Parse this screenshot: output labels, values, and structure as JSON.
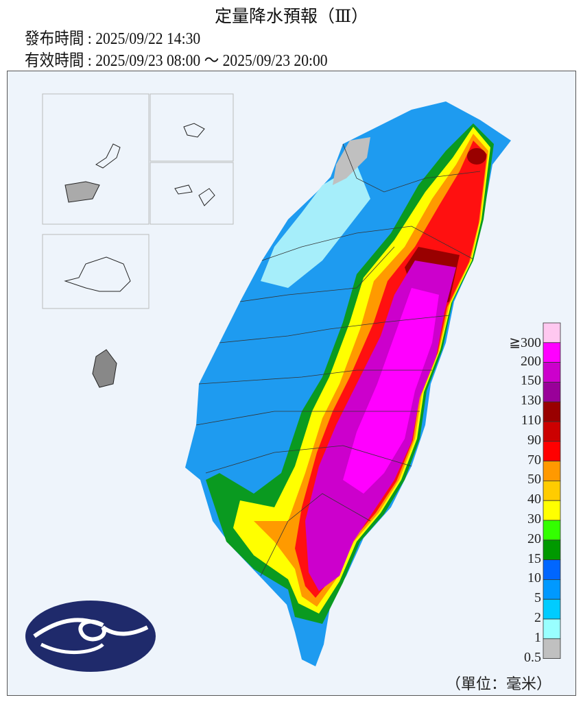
{
  "header": {
    "title": "定量降水預報（Ⅲ）",
    "issued": "發布時間 : 2025/09/22 14:30",
    "valid": "有效時間 : 2025/09/23 08:00 ～ 2025/09/23 20:00"
  },
  "legend": {
    "unit": "（單位：毫米）",
    "items": [
      {
        "label": "≧300",
        "color": "#ffc8f0"
      },
      {
        "label": "200",
        "color": "#ff00ff"
      },
      {
        "label": "150",
        "color": "#cc00cc"
      },
      {
        "label": "130",
        "color": "#990099"
      },
      {
        "label": "110",
        "color": "#990000"
      },
      {
        "label": "90",
        "color": "#cc0000"
      },
      {
        "label": "70",
        "color": "#ff0000"
      },
      {
        "label": "50",
        "color": "#ff9900"
      },
      {
        "label": "40",
        "color": "#ffcc00"
      },
      {
        "label": "30",
        "color": "#ffff00"
      },
      {
        "label": "20",
        "color": "#33ff00"
      },
      {
        "label": "15",
        "color": "#009900"
      },
      {
        "label": "10",
        "color": "#0066ff"
      },
      {
        "label": "5",
        "color": "#0099ff"
      },
      {
        "label": "2",
        "color": "#00ccff"
      },
      {
        "label": "1",
        "color": "#99ffff"
      },
      {
        "label": "0.5",
        "color": "#c0c0c0"
      }
    ]
  },
  "logo": "central-weather-administration-logo"
}
